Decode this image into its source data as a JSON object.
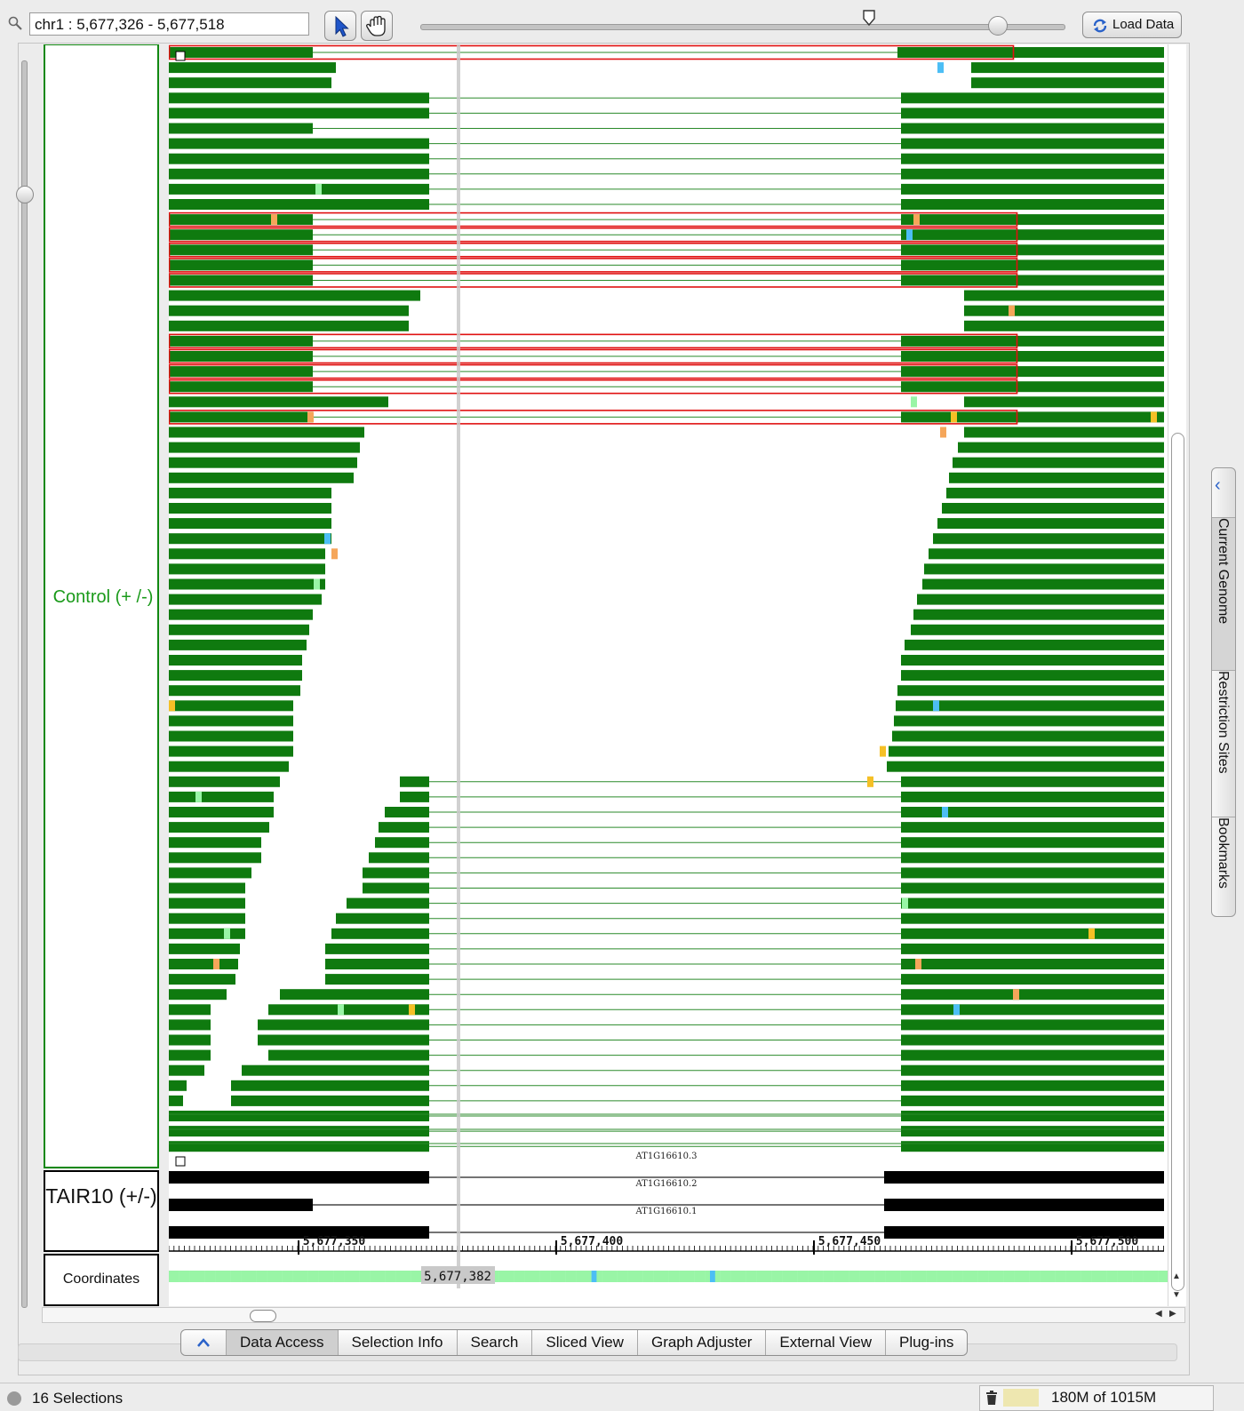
{
  "toolbar": {
    "location": "chr1 : 5,677,326 - 5,677,518",
    "load_data_label": "Load Data",
    "select_tool": "arrow-cursor-icon",
    "pan_tool": "hand-icon"
  },
  "tracks": {
    "control_label": "Control (+ /-)",
    "annotation_label": "TAIR10 (+/-)",
    "coordinates_label": "Coordinates"
  },
  "gene_models": [
    "AT1G16610.3",
    "AT1G16610.2",
    "AT1G16610.1"
  ],
  "ruler": {
    "ticks": [
      "5,677,350",
      "5,677,400",
      "5,677,450",
      "5,677,500"
    ],
    "cursor_position": "5,677,382"
  },
  "tabs": [
    "Data Access",
    "Selection Info",
    "Search",
    "Sliced View",
    "Graph Adjuster",
    "External View",
    "Plug-ins"
  ],
  "active_tab": "Data Access",
  "side_tabs": [
    "Current Genome",
    "Restriction Sites",
    "Bookmarks"
  ],
  "status": {
    "selections": "16 Selections",
    "memory": "180M of 1015M"
  },
  "colors": {
    "read_fill": "#0f7a0f",
    "selection_outline": "#e01010",
    "intron_line": "#2a8a2a",
    "gene_fill": "#000000",
    "base_a": "#99f5a6",
    "base_c": "#4cbef5",
    "base_g": "#f5c026",
    "base_t": "#f5a65a"
  }
}
